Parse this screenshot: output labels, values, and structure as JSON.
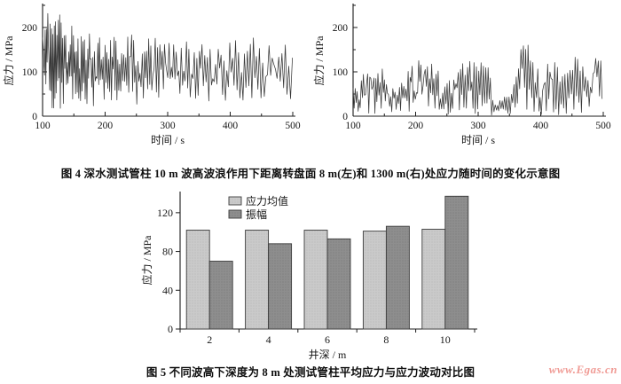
{
  "page": {
    "background": "#ffffff"
  },
  "figure4": {
    "caption": "图 4  深水测试管柱 10 m 波高波浪作用下距离转盘面 8 m(左)和 1300 m(右)处应力随时间的变化示意图"
  },
  "figure5": {
    "caption": "图 5  不同波高下深度为 8 m 处测试管柱平均应力与应力波动对比图"
  },
  "watermark": {
    "text": "www.Egas.cn",
    "color": "#f09b95"
  },
  "chart_data": [
    {
      "id": "stress-time-8m",
      "type": "line",
      "title": "",
      "xlabel": "时间 / s",
      "ylabel": "应力 / MPa",
      "xlim": [
        100,
        500
      ],
      "ylim": [
        0,
        250
      ],
      "xticks": [
        100,
        200,
        300,
        400,
        500
      ],
      "xticks_minor": [
        150,
        250,
        350,
        450
      ],
      "yticks": [
        0,
        100,
        200
      ],
      "yticks_minor": [
        50,
        150,
        250
      ],
      "line_color": "#383838",
      "seed": 7,
      "step": [
        0.85,
        2.6
      ],
      "envelope": {
        "t": [
          100,
          105,
          110,
          115,
          120,
          125,
          130,
          140,
          150,
          160,
          170,
          180,
          190,
          200,
          210,
          220,
          230,
          240,
          250,
          260,
          270,
          280,
          290,
          300,
          310,
          320,
          330,
          340,
          350,
          360,
          370,
          380,
          390,
          400,
          410,
          420,
          430,
          440,
          450,
          460,
          470,
          480,
          490,
          500
        ],
        "high": [
          250,
          245,
          248,
          240,
          242,
          235,
          230,
          225,
          205,
          190,
          185,
          195,
          180,
          200,
          175,
          185,
          190,
          200,
          195,
          170,
          175,
          180,
          175,
          185,
          160,
          165,
          170,
          175,
          180,
          165,
          175,
          170,
          180,
          170,
          175,
          180,
          185,
          175,
          170,
          165,
          170,
          165,
          160,
          150
        ],
        "low": [
          0,
          0,
          0,
          5,
          0,
          10,
          15,
          5,
          25,
          30,
          25,
          20,
          35,
          20,
          10,
          30,
          25,
          20,
          5,
          40,
          35,
          30,
          40,
          25,
          50,
          45,
          40,
          30,
          35,
          45,
          20,
          25,
          15,
          40,
          35,
          30,
          25,
          40,
          35,
          40,
          35,
          30,
          35,
          40
        ]
      }
    },
    {
      "id": "stress-time-1300m",
      "type": "line",
      "title": "",
      "xlabel": "时间 / s",
      "ylabel": "应力 / MPa",
      "xlim": [
        100,
        500
      ],
      "ylim": [
        0,
        250
      ],
      "xticks": [
        100,
        200,
        300,
        400,
        500
      ],
      "xticks_minor": [
        150,
        250,
        350,
        450
      ],
      "yticks": [
        0,
        100,
        200
      ],
      "yticks_minor": [
        50,
        150,
        250
      ],
      "line_color": "#383838",
      "seed": 23,
      "step": [
        1.45,
        1.9
      ],
      "envelope": {
        "t": [
          100,
          110,
          120,
          130,
          140,
          150,
          160,
          170,
          180,
          190,
          200,
          210,
          220,
          230,
          240,
          250,
          260,
          270,
          280,
          290,
          300,
          310,
          320,
          330,
          340,
          350,
          360,
          370,
          380,
          390,
          400,
          410,
          420,
          430,
          440,
          450,
          460,
          470,
          480,
          490,
          500
        ],
        "high": [
          90,
          80,
          110,
          140,
          120,
          100,
          60,
          70,
          80,
          110,
          130,
          140,
          155,
          172,
          60,
          80,
          90,
          120,
          130,
          150,
          150,
          130,
          120,
          40,
          45,
          60,
          120,
          170,
          160,
          130,
          110,
          120,
          130,
          110,
          100,
          130,
          145,
          120,
          130,
          178,
          100
        ],
        "low": [
          0,
          5,
          0,
          0,
          10,
          0,
          10,
          5,
          0,
          10,
          0,
          15,
          20,
          10,
          0,
          0,
          5,
          10,
          15,
          10,
          0,
          10,
          0,
          5,
          0,
          0,
          10,
          20,
          10,
          5,
          0,
          10,
          5,
          0,
          0,
          10,
          5,
          0,
          10,
          20,
          0
        ]
      }
    },
    {
      "id": "stress-vs-depth",
      "type": "bar",
      "title": "",
      "categories": [
        "2",
        "4",
        "6",
        "8",
        "10"
      ],
      "series": [
        {
          "name": "应力均值",
          "values": [
            102,
            102,
            102,
            101,
            103
          ],
          "color": "#cacaca"
        },
        {
          "name": "振幅",
          "values": [
            70,
            88,
            93,
            106,
            137
          ],
          "color": "#8e8e8e"
        }
      ],
      "xlabel": "井深 / m",
      "ylabel": "应力 / MPa",
      "ylim": [
        0,
        140
      ],
      "yticks": [
        0,
        40,
        80,
        120
      ],
      "legend_position": "top-left",
      "bar_border_color": "#3c3c3c"
    }
  ]
}
